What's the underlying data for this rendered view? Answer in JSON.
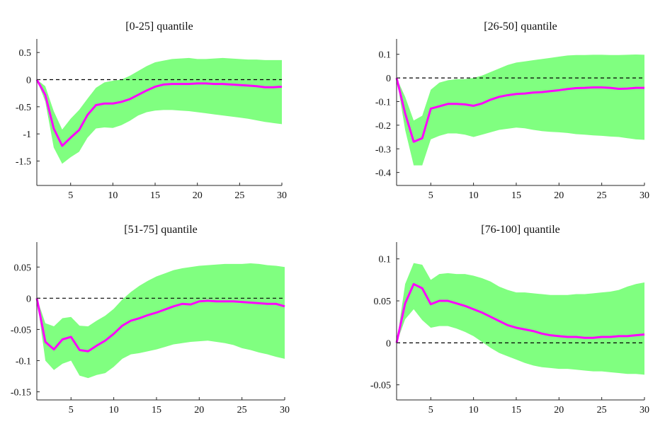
{
  "colors": {
    "band": "#80ff80",
    "line": "#ff00ff",
    "zero_line": "#000000",
    "axis": "#262626"
  },
  "chart_data": [
    {
      "type": "area",
      "title": "[0-25] quantile",
      "xlabel": "",
      "ylabel": "",
      "xlim": [
        1,
        30
      ],
      "ylim": [
        -1.95,
        0.75
      ],
      "xticks": [
        5,
        10,
        15,
        20,
        25,
        30
      ],
      "yticks": [
        0.5,
        0,
        -0.5,
        -1,
        -1.5
      ],
      "ytick_labels": [
        "0.5",
        "0",
        "-0.5",
        "-1",
        "-1.5"
      ],
      "x": [
        1,
        2,
        3,
        4,
        5,
        6,
        7,
        8,
        9,
        10,
        11,
        12,
        13,
        14,
        15,
        16,
        17,
        18,
        19,
        20,
        21,
        22,
        23,
        24,
        25,
        26,
        27,
        28,
        29,
        30
      ],
      "series": [
        {
          "name": "median",
          "values": [
            0,
            -0.28,
            -0.9,
            -1.22,
            -1.07,
            -0.93,
            -0.65,
            -0.47,
            -0.44,
            -0.44,
            -0.41,
            -0.36,
            -0.28,
            -0.2,
            -0.13,
            -0.09,
            -0.08,
            -0.08,
            -0.08,
            -0.07,
            -0.07,
            -0.08,
            -0.08,
            -0.09,
            -0.1,
            -0.11,
            -0.12,
            -0.14,
            -0.14,
            -0.13
          ]
        },
        {
          "name": "upper",
          "values": [
            0,
            -0.12,
            -0.58,
            -0.92,
            -0.72,
            -0.56,
            -0.35,
            -0.15,
            -0.05,
            -0.02,
            0.0,
            0.07,
            0.16,
            0.25,
            0.32,
            0.35,
            0.38,
            0.39,
            0.4,
            0.38,
            0.38,
            0.39,
            0.4,
            0.39,
            0.38,
            0.37,
            0.37,
            0.36,
            0.36,
            0.36
          ]
        },
        {
          "name": "lower",
          "values": [
            0,
            -0.4,
            -1.25,
            -1.55,
            -1.43,
            -1.33,
            -1.07,
            -0.9,
            -0.88,
            -0.89,
            -0.84,
            -0.76,
            -0.66,
            -0.6,
            -0.57,
            -0.56,
            -0.56,
            -0.57,
            -0.58,
            -0.6,
            -0.62,
            -0.64,
            -0.66,
            -0.68,
            -0.7,
            -0.72,
            -0.75,
            -0.78,
            -0.8,
            -0.82
          ]
        }
      ]
    },
    {
      "type": "area",
      "title": "[26-50] quantile",
      "xlabel": "",
      "ylabel": "",
      "xlim": [
        1,
        30
      ],
      "ylim": [
        -0.455,
        0.165
      ],
      "xticks": [
        5,
        10,
        15,
        20,
        25,
        30
      ],
      "yticks": [
        0.1,
        0,
        -0.1,
        -0.2,
        -0.3,
        -0.4
      ],
      "ytick_labels": [
        "0.1",
        "0",
        "-0.1",
        "-0.2",
        "-0.3",
        "-0.4"
      ],
      "x": [
        1,
        2,
        3,
        4,
        5,
        6,
        7,
        8,
        9,
        10,
        11,
        12,
        13,
        14,
        15,
        16,
        17,
        18,
        19,
        20,
        21,
        22,
        23,
        24,
        25,
        26,
        27,
        28,
        29,
        30
      ],
      "series": [
        {
          "name": "median",
          "values": [
            0,
            -0.15,
            -0.27,
            -0.255,
            -0.13,
            -0.12,
            -0.11,
            -0.11,
            -0.112,
            -0.118,
            -0.108,
            -0.092,
            -0.08,
            -0.073,
            -0.068,
            -0.066,
            -0.062,
            -0.06,
            -0.056,
            -0.052,
            -0.047,
            -0.043,
            -0.042,
            -0.04,
            -0.04,
            -0.042,
            -0.046,
            -0.045,
            -0.042,
            -0.042
          ]
        },
        {
          "name": "upper",
          "values": [
            0,
            -0.08,
            -0.18,
            -0.16,
            -0.05,
            -0.02,
            -0.01,
            -0.005,
            -0.005,
            0.0,
            0.01,
            0.025,
            0.04,
            0.055,
            0.065,
            0.07,
            0.075,
            0.08,
            0.085,
            0.09,
            0.095,
            0.097,
            0.097,
            0.098,
            0.098,
            0.097,
            0.097,
            0.098,
            0.099,
            0.098
          ]
        },
        {
          "name": "lower",
          "values": [
            0,
            -0.22,
            -0.37,
            -0.37,
            -0.26,
            -0.245,
            -0.235,
            -0.235,
            -0.24,
            -0.25,
            -0.24,
            -0.23,
            -0.22,
            -0.215,
            -0.21,
            -0.213,
            -0.22,
            -0.225,
            -0.228,
            -0.23,
            -0.233,
            -0.238,
            -0.24,
            -0.243,
            -0.245,
            -0.248,
            -0.25,
            -0.255,
            -0.26,
            -0.262
          ]
        }
      ]
    },
    {
      "type": "area",
      "title": "[51-75] quantile",
      "xlabel": "",
      "ylabel": "",
      "xlim": [
        1,
        30
      ],
      "ylim": [
        -0.163,
        0.09
      ],
      "xticks": [
        5,
        10,
        15,
        20,
        25,
        30
      ],
      "yticks": [
        0.05,
        0,
        -0.05,
        -0.1,
        -0.15
      ],
      "ytick_labels": [
        "0.05",
        "0",
        "-0.05",
        "-0.1",
        "-0.15"
      ],
      "x": [
        1,
        2,
        3,
        4,
        5,
        6,
        7,
        8,
        9,
        10,
        11,
        12,
        13,
        14,
        15,
        16,
        17,
        18,
        19,
        20,
        21,
        22,
        23,
        24,
        25,
        26,
        27,
        28,
        29,
        30
      ],
      "series": [
        {
          "name": "median",
          "values": [
            0,
            -0.07,
            -0.082,
            -0.066,
            -0.062,
            -0.083,
            -0.085,
            -0.076,
            -0.068,
            -0.057,
            -0.044,
            -0.036,
            -0.032,
            -0.027,
            -0.023,
            -0.018,
            -0.013,
            -0.009,
            -0.01,
            -0.005,
            -0.004,
            -0.005,
            -0.005,
            -0.005,
            -0.006,
            -0.007,
            -0.008,
            -0.009,
            -0.009,
            -0.013
          ]
        },
        {
          "name": "upper",
          "values": [
            0,
            -0.04,
            -0.045,
            -0.032,
            -0.03,
            -0.044,
            -0.045,
            -0.036,
            -0.028,
            -0.017,
            -0.002,
            0.01,
            0.02,
            0.028,
            0.035,
            0.04,
            0.045,
            0.048,
            0.05,
            0.052,
            0.053,
            0.054,
            0.055,
            0.055,
            0.055,
            0.056,
            0.055,
            0.053,
            0.052,
            0.05
          ]
        },
        {
          "name": "lower",
          "values": [
            0,
            -0.1,
            -0.115,
            -0.105,
            -0.1,
            -0.124,
            -0.128,
            -0.123,
            -0.12,
            -0.11,
            -0.097,
            -0.09,
            -0.088,
            -0.085,
            -0.082,
            -0.078,
            -0.074,
            -0.072,
            -0.07,
            -0.069,
            -0.068,
            -0.07,
            -0.072,
            -0.075,
            -0.08,
            -0.083,
            -0.087,
            -0.09,
            -0.094,
            -0.097
          ]
        }
      ]
    },
    {
      "type": "area",
      "title": "[76-100] quantile",
      "xlabel": "",
      "ylabel": "",
      "xlim": [
        1,
        30
      ],
      "ylim": [
        -0.068,
        0.12
      ],
      "xticks": [
        5,
        10,
        15,
        20,
        25,
        30
      ],
      "yticks": [
        0.1,
        0.05,
        0,
        -0.05
      ],
      "ytick_labels": [
        "0.1",
        "0.05",
        "0",
        "-0.05"
      ],
      "x": [
        1,
        2,
        3,
        4,
        5,
        6,
        7,
        8,
        9,
        10,
        11,
        12,
        13,
        14,
        15,
        16,
        17,
        18,
        19,
        20,
        21,
        22,
        23,
        24,
        25,
        26,
        27,
        28,
        29,
        30
      ],
      "series": [
        {
          "name": "median",
          "values": [
            0,
            0.047,
            0.07,
            0.065,
            0.046,
            0.05,
            0.05,
            0.047,
            0.044,
            0.04,
            0.036,
            0.031,
            0.026,
            0.021,
            0.018,
            0.016,
            0.014,
            0.011,
            0.009,
            0.008,
            0.007,
            0.007,
            0.006,
            0.006,
            0.007,
            0.007,
            0.008,
            0.008,
            0.009,
            0.01
          ]
        },
        {
          "name": "upper",
          "values": [
            0,
            0.07,
            0.095,
            0.093,
            0.075,
            0.082,
            0.083,
            0.082,
            0.082,
            0.08,
            0.077,
            0.073,
            0.067,
            0.063,
            0.06,
            0.06,
            0.059,
            0.058,
            0.057,
            0.057,
            0.057,
            0.058,
            0.058,
            0.059,
            0.06,
            0.061,
            0.063,
            0.067,
            0.07,
            0.072
          ]
        },
        {
          "name": "lower",
          "values": [
            0,
            0.028,
            0.04,
            0.027,
            0.018,
            0.02,
            0.02,
            0.017,
            0.013,
            0.008,
            0.001,
            -0.006,
            -0.012,
            -0.016,
            -0.02,
            -0.024,
            -0.027,
            -0.029,
            -0.03,
            -0.031,
            -0.031,
            -0.032,
            -0.033,
            -0.034,
            -0.034,
            -0.035,
            -0.036,
            -0.037,
            -0.037,
            -0.038
          ]
        }
      ]
    }
  ]
}
